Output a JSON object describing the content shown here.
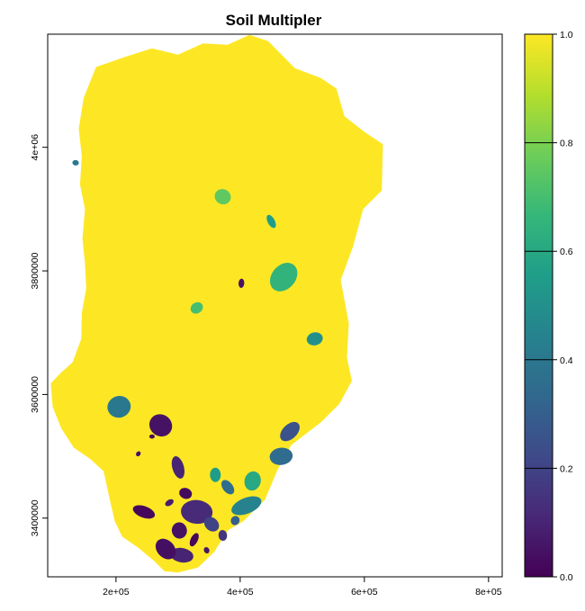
{
  "chart_data": {
    "type": "heatmap",
    "title": "Soil Multipler",
    "xlabel": "",
    "ylabel": "",
    "x_ticks": [
      {
        "value": 200000,
        "label": "2e+05"
      },
      {
        "value": 400000,
        "label": "4e+05"
      },
      {
        "value": 600000,
        "label": "6e+05"
      },
      {
        "value": 800000,
        "label": "8e+05"
      }
    ],
    "y_ticks": [
      {
        "value": 3400000,
        "label": "3400000"
      },
      {
        "value": 3600000,
        "label": "3600000"
      },
      {
        "value": 3800000,
        "label": "3800000"
      },
      {
        "value": 4000000,
        "label": "4e+06"
      }
    ],
    "xlim": [
      90000,
      822000
    ],
    "ylim": [
      3305000,
      4183000
    ],
    "colorbar": {
      "range": [
        0.0,
        1.0
      ],
      "ticks": [
        {
          "value": 0.0,
          "label": "0.0"
        },
        {
          "value": 0.2,
          "label": "0.2"
        },
        {
          "value": 0.4,
          "label": "0.4"
        },
        {
          "value": 0.6,
          "label": "0.6"
        },
        {
          "value": 0.8,
          "label": "0.8"
        },
        {
          "value": 1.0,
          "label": "1.0"
        }
      ],
      "palette": [
        "#440154",
        "#482878",
        "#3E4A89",
        "#31688E",
        "#26828E",
        "#1F9E89",
        "#35B779",
        "#6DCD59",
        "#B4DE2C",
        "#FDE725"
      ]
    },
    "dominant_value": 1.0,
    "region_outline": [
      [
        168000,
        4130000
      ],
      [
        220000,
        4148000
      ],
      [
        258000,
        4160000
      ],
      [
        300000,
        4150000
      ],
      [
        340000,
        4168000
      ],
      [
        380000,
        4166000
      ],
      [
        415000,
        4182000
      ],
      [
        445000,
        4172000
      ],
      [
        488000,
        4128000
      ],
      [
        530000,
        4112000
      ],
      [
        555000,
        4095000
      ],
      [
        568000,
        4050000
      ],
      [
        600000,
        4025000
      ],
      [
        630000,
        4005000
      ],
      [
        628000,
        3930000
      ],
      [
        598000,
        3900000
      ],
      [
        582000,
        3840000
      ],
      [
        562000,
        3785000
      ],
      [
        575000,
        3715000
      ],
      [
        572000,
        3660000
      ],
      [
        580000,
        3622000
      ],
      [
        560000,
        3585000
      ],
      [
        530000,
        3555000
      ],
      [
        482000,
        3518000
      ],
      [
        460000,
        3478000
      ],
      [
        440000,
        3430000
      ],
      [
        405000,
        3395000
      ],
      [
        380000,
        3380000
      ],
      [
        358000,
        3345000
      ],
      [
        332000,
        3320000
      ],
      [
        300000,
        3312000
      ],
      [
        278000,
        3314000
      ],
      [
        262000,
        3330000
      ],
      [
        236000,
        3352000
      ],
      [
        210000,
        3370000
      ],
      [
        198000,
        3395000
      ],
      [
        190000,
        3430000
      ],
      [
        180000,
        3476000
      ],
      [
        158000,
        3496000
      ],
      [
        132000,
        3514000
      ],
      [
        112000,
        3545000
      ],
      [
        98000,
        3580000
      ],
      [
        95000,
        3618000
      ],
      [
        112000,
        3636000
      ],
      [
        130000,
        3652000
      ],
      [
        144000,
        3690000
      ],
      [
        145000,
        3732000
      ],
      [
        152000,
        3772000
      ],
      [
        150000,
        3812000
      ],
      [
        146000,
        3852000
      ],
      [
        150000,
        3900000
      ],
      [
        142000,
        3940000
      ],
      [
        145000,
        3985000
      ],
      [
        140000,
        4030000
      ],
      [
        148000,
        4080000
      ]
    ],
    "low_value_patches": [
      {
        "x": 258000,
        "y": 3532000,
        "value": 0.02
      },
      {
        "x": 272000,
        "y": 3550000,
        "value": 0.05
      },
      {
        "x": 300000,
        "y": 3482000,
        "value": 0.1
      },
      {
        "x": 312000,
        "y": 3440000,
        "value": 0.03
      },
      {
        "x": 286000,
        "y": 3425000,
        "value": 0.08
      },
      {
        "x": 330000,
        "y": 3410000,
        "value": 0.12
      },
      {
        "x": 354000,
        "y": 3390000,
        "value": 0.2
      },
      {
        "x": 302000,
        "y": 3380000,
        "value": 0.05
      },
      {
        "x": 326000,
        "y": 3365000,
        "value": 0.02
      },
      {
        "x": 346000,
        "y": 3348000,
        "value": 0.06
      },
      {
        "x": 306000,
        "y": 3340000,
        "value": 0.1
      },
      {
        "x": 280000,
        "y": 3350000,
        "value": 0.04
      },
      {
        "x": 372000,
        "y": 3372000,
        "value": 0.15
      },
      {
        "x": 392000,
        "y": 3396000,
        "value": 0.3
      },
      {
        "x": 410000,
        "y": 3420000,
        "value": 0.45
      },
      {
        "x": 420000,
        "y": 3460000,
        "value": 0.6
      },
      {
        "x": 380000,
        "y": 3450000,
        "value": 0.35
      },
      {
        "x": 360000,
        "y": 3470000,
        "value": 0.55
      },
      {
        "x": 236000,
        "y": 3504000,
        "value": 0.05
      },
      {
        "x": 205000,
        "y": 3580000,
        "value": 0.4
      },
      {
        "x": 245000,
        "y": 3410000,
        "value": 0.02
      },
      {
        "x": 330000,
        "y": 3740000,
        "value": 0.7
      },
      {
        "x": 402000,
        "y": 3780000,
        "value": 0.05
      },
      {
        "x": 470000,
        "y": 3790000,
        "value": 0.65
      },
      {
        "x": 520000,
        "y": 3690000,
        "value": 0.5
      },
      {
        "x": 372000,
        "y": 3920000,
        "value": 0.75
      },
      {
        "x": 450000,
        "y": 3880000,
        "value": 0.55
      },
      {
        "x": 135000,
        "y": 3975000,
        "value": 0.4
      },
      {
        "x": 480000,
        "y": 3540000,
        "value": 0.25
      },
      {
        "x": 466000,
        "y": 3500000,
        "value": 0.35
      }
    ]
  }
}
